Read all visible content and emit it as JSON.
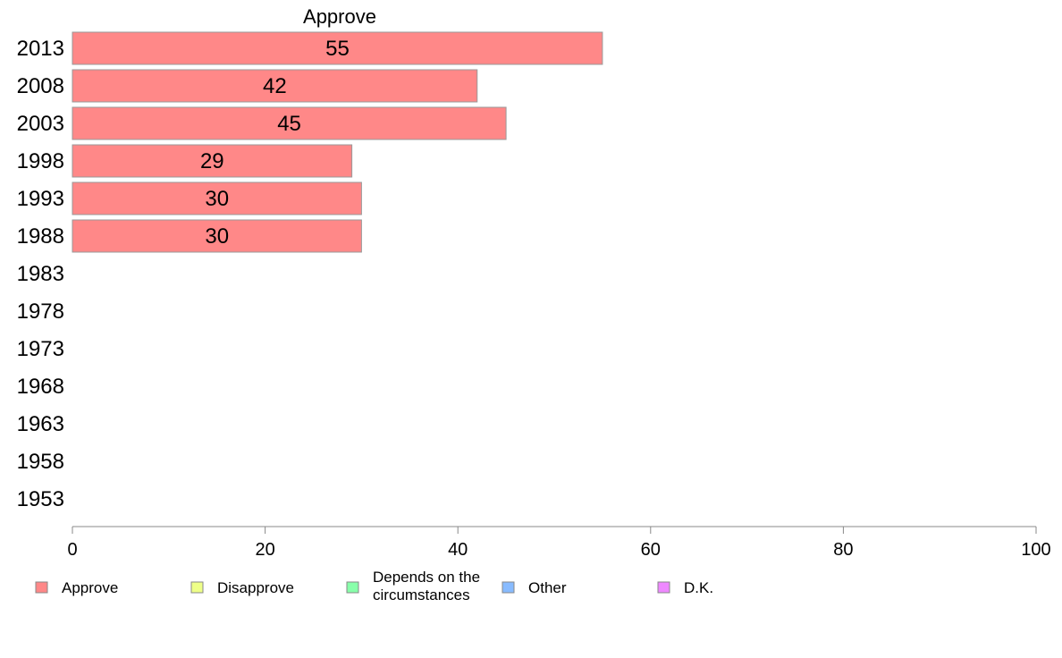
{
  "chart_data": {
    "type": "bar",
    "orientation": "horizontal",
    "stacked": true,
    "categories": [
      "2013",
      "2008",
      "2003",
      "1998",
      "1993",
      "1988",
      "1983",
      "1978",
      "1973",
      "1968",
      "1963",
      "1958",
      "1953"
    ],
    "series": [
      {
        "name": "Approve",
        "values": [
          55,
          42,
          45,
          29,
          30,
          30,
          null,
          null,
          null,
          null,
          null,
          null,
          null
        ],
        "color": "#ff8888"
      }
    ],
    "series_label_top": "Approve",
    "xlim": [
      0,
      100
    ],
    "xticks": [
      "0",
      "20",
      "40",
      "60",
      "80",
      "100"
    ],
    "legend": {
      "placement": "bottom",
      "items": [
        {
          "label_lines": [
            "Approve"
          ],
          "color": "#ff8888"
        },
        {
          "label_lines": [
            "Disapprove"
          ],
          "color": "#eeff88"
        },
        {
          "label_lines": [
            "Depends on the",
            "circumstances"
          ],
          "color": "#88ffaa"
        },
        {
          "label_lines": [
            "Other"
          ],
          "color": "#88bbff"
        },
        {
          "label_lines": [
            "D.K."
          ],
          "color": "#ee88ff"
        }
      ]
    },
    "grid": false
  }
}
